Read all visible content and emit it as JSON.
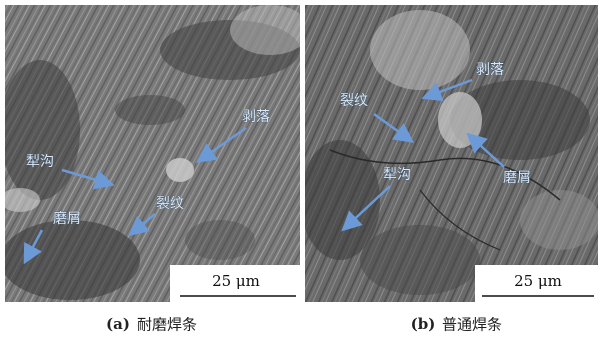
{
  "panels": [
    {
      "caption_prefix": "(a)",
      "caption": "耐磨焊条",
      "scale_bar": "25 μm",
      "annotations": [
        {
          "label": "剥落"
        },
        {
          "label": "犁沟"
        },
        {
          "label": "裂纹"
        },
        {
          "label": "磨屑"
        }
      ]
    },
    {
      "caption_prefix": "(b)",
      "caption": "普通焊条",
      "scale_bar": "25 μm",
      "annotations": [
        {
          "label": "剥落"
        },
        {
          "label": "裂纹"
        },
        {
          "label": "磨屑"
        },
        {
          "label": "犁沟"
        }
      ]
    }
  ]
}
